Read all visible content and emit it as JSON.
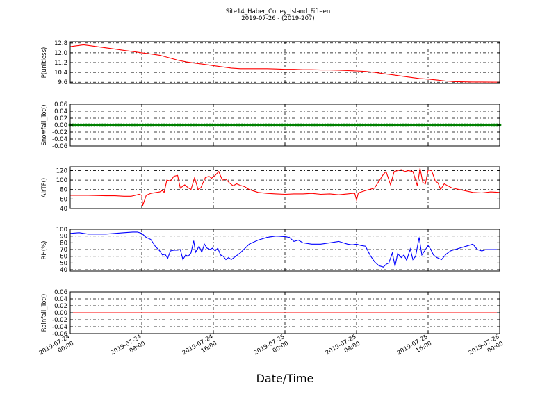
{
  "title": "Site14_Haber_Coney_Island_Fifteen",
  "subtitle": "2019-07-26 - (2019-207)",
  "xlabel": "Date/Time",
  "x_ticks": [
    {
      "value": 0,
      "line1": "2019-07-24",
      "line2": "00:00"
    },
    {
      "value": 8,
      "line1": "2019-07-24",
      "line2": "08:00"
    },
    {
      "value": 16,
      "line1": "2019-07-24",
      "line2": "16:00"
    },
    {
      "value": 24,
      "line1": "2019-07-25",
      "line2": "00:00"
    },
    {
      "value": 32,
      "line1": "2019-07-25",
      "line2": "08:00"
    },
    {
      "value": 40,
      "line1": "2019-07-25",
      "line2": "16:00"
    },
    {
      "value": 48,
      "line1": "2019-07-26",
      "line2": "00:00"
    }
  ],
  "chart_data": [
    {
      "type": "line",
      "ylabel": "P(unitless)",
      "ylim": [
        9.5,
        12.9
      ],
      "yticks": [
        "9.6",
        "10.4",
        "11.2",
        "12.0",
        "12.8"
      ],
      "yticks_values": [
        9.6,
        10.4,
        11.2,
        12.0,
        12.8
      ],
      "grid": true,
      "color": "#ff0000",
      "markers": false,
      "x": [
        0,
        0.5,
        1,
        1.5,
        2,
        3,
        4,
        5,
        6,
        7,
        8,
        9,
        10,
        11,
        12,
        13,
        14,
        15,
        16,
        17,
        18,
        19,
        20,
        21,
        22,
        23,
        24,
        25,
        26,
        27,
        28,
        29,
        30,
        31,
        32,
        33,
        34,
        35,
        36,
        37,
        38,
        39,
        40,
        41,
        42,
        43,
        44,
        45,
        46,
        47,
        48
      ],
      "values": [
        12.5,
        12.55,
        12.6,
        12.65,
        12.6,
        12.5,
        12.4,
        12.3,
        12.2,
        12.1,
        12.0,
        11.9,
        11.8,
        11.6,
        11.4,
        11.25,
        11.15,
        11.05,
        10.95,
        10.85,
        10.75,
        10.7,
        10.7,
        10.7,
        10.7,
        10.68,
        10.65,
        10.65,
        10.62,
        10.62,
        10.6,
        10.6,
        10.58,
        10.55,
        10.52,
        10.48,
        10.4,
        10.3,
        10.2,
        10.1,
        10.0,
        9.9,
        9.85,
        9.78,
        9.7,
        9.65,
        9.63,
        9.62,
        9.62,
        9.61,
        9.6
      ]
    },
    {
      "type": "line",
      "ylabel": "Snowfall_Tot()",
      "ylim": [
        -0.06,
        0.06
      ],
      "yticks": [
        "-0.06",
        "-0.04",
        "-0.02",
        "0.00",
        "0.02",
        "0.04",
        "0.06"
      ],
      "yticks_values": [
        -0.06,
        -0.04,
        -0.02,
        0.0,
        0.02,
        0.04,
        0.06
      ],
      "grid": true,
      "color": "#008000",
      "markers": true,
      "x": [
        0,
        48
      ],
      "values": [
        0,
        0
      ]
    },
    {
      "type": "line",
      "ylabel": "AirTF()",
      "ylim": [
        40,
        128
      ],
      "yticks": [
        "40",
        "60",
        "80",
        "100",
        "120"
      ],
      "yticks_values": [
        40,
        60,
        80,
        100,
        120
      ],
      "grid": true,
      "color": "#ff0000",
      "markers": false,
      "x": [
        0,
        2,
        4,
        5,
        6,
        6.8,
        7.3,
        7.7,
        8.0,
        8.1,
        8.5,
        9,
        10,
        10.3,
        10.5,
        10.8,
        11.2,
        11.6,
        12.0,
        12.3,
        12.8,
        13.1,
        13.5,
        13.9,
        14.3,
        14.6,
        15.1,
        15.5,
        15.8,
        16.2,
        16.6,
        17.0,
        17.4,
        17.8,
        18.2,
        18.6,
        19.0,
        19.5,
        20,
        21,
        22,
        23,
        24,
        25,
        26,
        27,
        28,
        29,
        30,
        31,
        31.5,
        31.8,
        32.0,
        32.2,
        33,
        34,
        35,
        35.3,
        35.8,
        36.2,
        36.6,
        37.0,
        37.4,
        37.8,
        38.3,
        38.8,
        39.1,
        39.4,
        39.7,
        40.0,
        40.4,
        40.8,
        41.1,
        41.4,
        41.8,
        42.2,
        42.6,
        43,
        44,
        45,
        46,
        47,
        48
      ],
      "values": [
        68,
        68,
        67,
        67,
        66,
        66,
        68,
        70,
        68,
        46,
        68,
        72,
        75,
        78,
        74,
        100,
        98,
        108,
        110,
        83,
        90,
        85,
        80,
        105,
        80,
        84,
        105,
        108,
        104,
        110,
        118,
        100,
        102,
        94,
        88,
        92,
        89,
        86,
        80,
        74,
        72,
        71,
        70,
        71,
        71,
        72,
        70,
        71,
        69,
        71,
        72,
        72,
        58,
        73,
        78,
        83,
        112,
        118,
        90,
        118,
        120,
        122,
        118,
        120,
        118,
        88,
        125,
        95,
        92,
        121,
        120,
        98,
        94,
        80,
        92,
        88,
        84,
        82,
        78,
        74,
        73,
        75,
        74
      ]
    },
    {
      "type": "line",
      "ylabel": "RH(%)",
      "ylim": [
        38,
        100
      ],
      "yticks": [
        "40",
        "50",
        "60",
        "70",
        "80",
        "90",
        "100"
      ],
      "yticks_values": [
        40,
        50,
        60,
        70,
        80,
        90,
        100
      ],
      "grid": true,
      "color": "#0000ff",
      "markers": false,
      "x": [
        0,
        1,
        2,
        3,
        4,
        5,
        6,
        7,
        7.5,
        8,
        8.5,
        9,
        9.5,
        10,
        10.3,
        10.6,
        10.9,
        11.2,
        11.6,
        12.0,
        12.3,
        12.6,
        12.9,
        13.2,
        13.5,
        13.8,
        14.0,
        14.4,
        14.7,
        15.0,
        15.3,
        15.6,
        15.9,
        16.2,
        16.5,
        16.8,
        17.1,
        17.4,
        17.7,
        18.0,
        18.5,
        19,
        20,
        21,
        22,
        23,
        24,
        24.5,
        25,
        25.5,
        26,
        27,
        28,
        29,
        30,
        31,
        31.5,
        32,
        32.5,
        33,
        33.5,
        34,
        34.5,
        35,
        35.3,
        35.6,
        36,
        36.3,
        36.6,
        37,
        37.3,
        37.6,
        38,
        38.3,
        38.6,
        39,
        39.3,
        39.6,
        40,
        40.3,
        40.6,
        41,
        41.5,
        42,
        42.5,
        43,
        44,
        45,
        45.5,
        46,
        46.5,
        47,
        48
      ],
      "values": [
        94,
        95,
        93,
        93,
        93,
        94,
        95,
        96,
        96,
        94,
        88,
        85,
        75,
        68,
        62,
        63,
        57,
        68,
        69,
        69,
        70,
        55,
        62,
        60,
        65,
        83,
        66,
        75,
        66,
        78,
        72,
        70,
        72,
        68,
        72,
        62,
        60,
        55,
        58,
        55,
        60,
        65,
        78,
        84,
        88,
        90,
        89,
        88,
        82,
        84,
        80,
        78,
        78,
        80,
        82,
        78,
        77,
        78,
        76,
        75,
        62,
        52,
        46,
        44,
        48,
        50,
        65,
        45,
        64,
        58,
        62,
        54,
        71,
        55,
        60,
        88,
        62,
        68,
        76,
        70,
        62,
        58,
        55,
        63,
        68,
        70,
        74,
        78,
        70,
        68,
        70,
        70,
        70
      ]
    },
    {
      "type": "line",
      "ylabel": "Rainfall_Tot()",
      "ylim": [
        -0.06,
        0.06
      ],
      "yticks": [
        "-0.06",
        "-0.04",
        "-0.02",
        "0.00",
        "0.02",
        "0.04",
        "0.06"
      ],
      "yticks_values": [
        -0.06,
        -0.04,
        -0.02,
        0.0,
        0.02,
        0.04,
        0.06
      ],
      "grid": true,
      "color": "#ff0000",
      "markers": false,
      "x": [
        0,
        48
      ],
      "values": [
        0,
        0
      ]
    }
  ]
}
